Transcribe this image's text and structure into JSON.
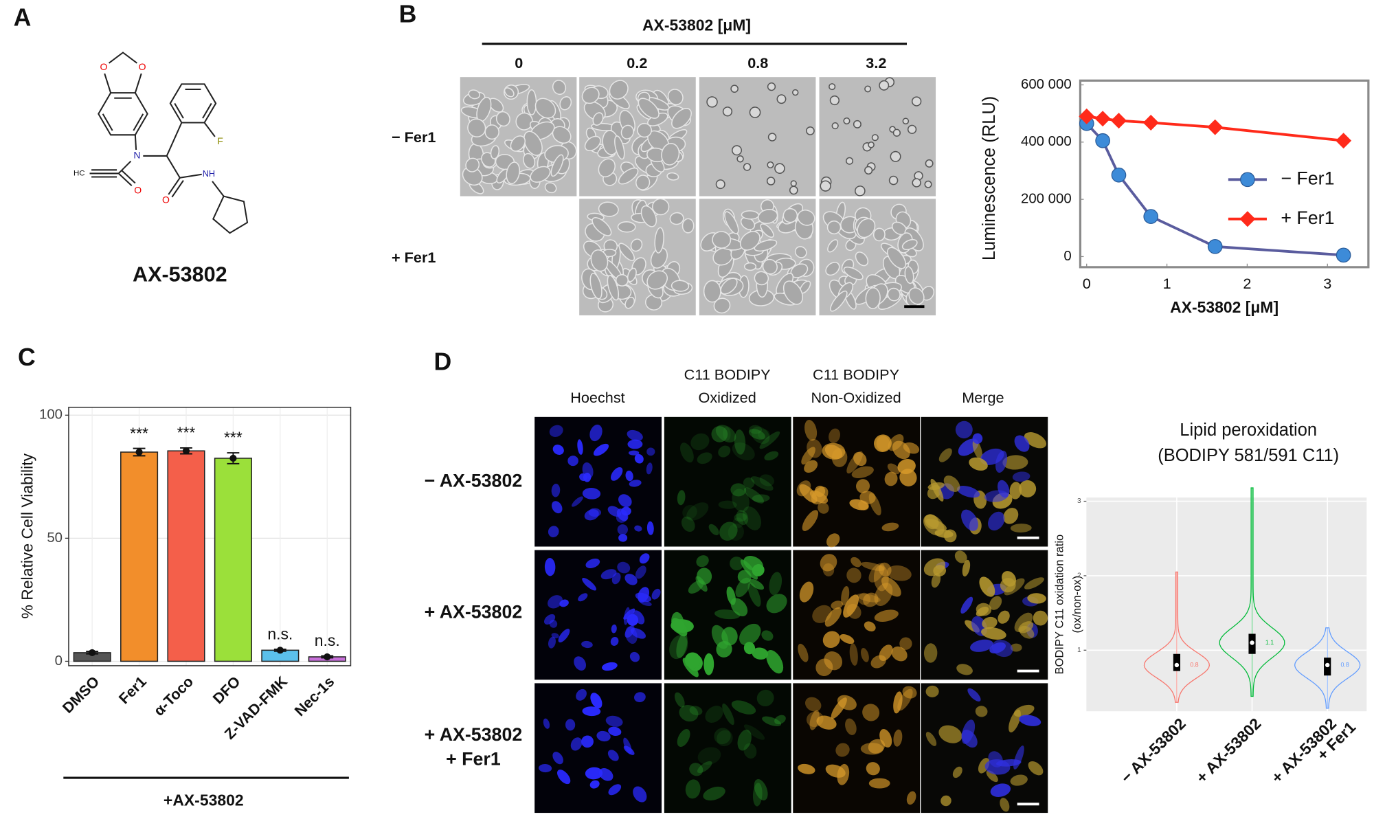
{
  "panels": {
    "a": "A",
    "b": "B",
    "c": "C",
    "d": "D"
  },
  "structure": {
    "compound": "AX-53802",
    "atoms": [
      "O",
      "O",
      "N",
      "HC",
      "O",
      "F",
      "O",
      "NH"
    ]
  },
  "micrographs_b": {
    "header": "AX-53802 [μM]",
    "columns": [
      "0",
      "0.2",
      "0.8",
      "3.2"
    ],
    "rows": [
      "− Fer1",
      "+ Fer1"
    ]
  },
  "micrographs_d": {
    "columns": [
      [
        "Hoechst"
      ],
      [
        "C11 BODIPY",
        "Oxidized"
      ],
      [
        "C11 BODIPY",
        "Non-Oxidized"
      ],
      [
        "Merge"
      ]
    ],
    "rows": [
      [
        "− AX-53802"
      ],
      [
        "+ AX-53802"
      ],
      [
        "+ AX-53802",
        "+ Fer1"
      ]
    ]
  },
  "chart_data": [
    {
      "type": "line",
      "xlabel": "AX-53802 [μM]",
      "ylabel": "Luminescence (RLU)",
      "x": [
        0,
        0.2,
        0.4,
        0.8,
        1.6,
        3.2
      ],
      "series": [
        {
          "name": "− Fer1",
          "color": "#5a5c9e",
          "marker_color": "#3d8bd8",
          "marker": "circle",
          "values": [
            465000,
            405000,
            285000,
            140000,
            35000,
            5000
          ]
        },
        {
          "name": "+ Fer1",
          "color": "#ff2a1a",
          "marker_color": "#ff2a1a",
          "marker": "diamond",
          "values": [
            490000,
            482000,
            475000,
            468000,
            452000,
            405000
          ]
        }
      ],
      "xlim": [
        -0.08,
        3.51
      ],
      "ylim": [
        -37000,
        615000
      ],
      "xticks": [
        0,
        1,
        2,
        3
      ],
      "yticks": [
        0,
        {
          "value": 200000,
          "label": "200 000"
        },
        {
          "value": 400000,
          "label": "400 000"
        },
        {
          "value": 600000,
          "label": "600 000"
        }
      ],
      "legend": "right",
      "grid": false
    },
    {
      "type": "bar",
      "ylabel": "% Relative Cell Viability",
      "group_label": "+AX-53802",
      "categories": [
        "DMSO",
        "Fer1",
        "α-Toco",
        "DFO",
        "Z-VAD-FMK",
        "Nec-1s"
      ],
      "values": [
        3.5,
        85,
        85.5,
        82.5,
        4.5,
        1.8
      ],
      "errors": [
        0.5,
        1.5,
        1.2,
        2.2,
        0.4,
        0.4
      ],
      "colors": [
        "#555555",
        "#f28e2b",
        "#f45f4a",
        "#9be03a",
        "#5bc0eb",
        "#c770d9"
      ],
      "annotations": [
        null,
        "***",
        "***",
        "***",
        "n.s.",
        "n.s."
      ],
      "ylim": [
        -1.8,
        103.2
      ],
      "yticks": [
        0,
        50,
        100
      ],
      "grid": true
    },
    {
      "type": "violin",
      "title": [
        "Lipid peroxidation",
        "(BODIPY 581/591 C11)"
      ],
      "ylabel": [
        "BODIPY C11 oxidation ratio",
        "(ox/non-ox)"
      ],
      "categories": [
        [
          "− AX-53802"
        ],
        [
          "+ AX-53802"
        ],
        [
          "+ AX-53802",
          "+ Fer1"
        ]
      ],
      "colors": [
        "#f8766d",
        "#00ba38",
        "#619cff"
      ],
      "min": [
        0.3,
        0.38,
        0.22
      ],
      "q1": [
        0.72,
        0.95,
        0.66
      ],
      "values": [
        0.8,
        1.1,
        0.8
      ],
      "value_labels": [
        "0.8",
        "1.1",
        "0.8"
      ],
      "q3": [
        0.95,
        1.22,
        0.9
      ],
      "max": [
        2.05,
        3.18,
        1.3
      ],
      "ylim": [
        0.18,
        3.05
      ],
      "yticks": [
        1,
        2,
        3
      ],
      "grid": true
    }
  ]
}
